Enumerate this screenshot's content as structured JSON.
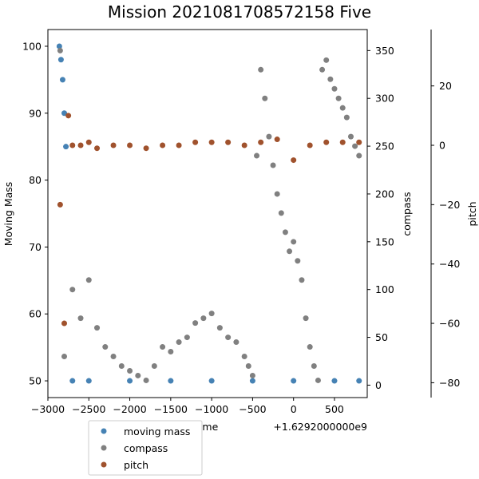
{
  "chart_data": {
    "type": "scatter",
    "title": "Mission 2021081708572158 Five",
    "x_axis": {
      "label": "Time",
      "offset_text": "+1.6292000000e9",
      "ticks": [
        -3000,
        -2500,
        -2000,
        -1500,
        -1000,
        -500,
        0,
        500
      ],
      "tick_labels": [
        "−3000",
        "−2500",
        "−2000",
        "−1500",
        "−1000",
        "−500",
        "0",
        "500"
      ],
      "range": [
        -3000,
        900
      ]
    },
    "y_axes": [
      {
        "name": "left",
        "label": "Moving Mass",
        "range": [
          47.5,
          102.5
        ],
        "ticks": [
          50,
          60,
          70,
          80,
          90,
          100
        ],
        "tick_labels": [
          "50",
          "60",
          "70",
          "80",
          "90",
          "100"
        ]
      },
      {
        "name": "compass",
        "label": "compass",
        "range": [
          -13,
          372
        ],
        "ticks": [
          0,
          50,
          100,
          150,
          200,
          250,
          300,
          350
        ],
        "tick_labels": [
          "0",
          "50",
          "100",
          "150",
          "200",
          "250",
          "300",
          "350"
        ]
      },
      {
        "name": "pitch",
        "label": "pitch",
        "range": [
          -85,
          39
        ],
        "ticks": [
          -80,
          -60,
          -40,
          -20,
          0,
          20
        ],
        "tick_labels": [
          "−80",
          "−60",
          "−40",
          "−20",
          "0",
          "20"
        ]
      }
    ],
    "series": [
      {
        "name": "moving mass",
        "color": "#4682b4",
        "axis": "left",
        "x": [
          -2860,
          -2840,
          -2820,
          -2800,
          -2780,
          -2700,
          -2500,
          -2000,
          -1500,
          -1000,
          -500,
          0,
          500,
          800
        ],
        "y": [
          100,
          98,
          95,
          90,
          85,
          50,
          50,
          50,
          50,
          50,
          50,
          50,
          50,
          50
        ]
      },
      {
        "name": "compass",
        "color": "#808080",
        "axis": "compass",
        "x": [
          -2850,
          -2800,
          -2700,
          -2600,
          -2500,
          -2400,
          -2300,
          -2200,
          -2100,
          -2000,
          -1900,
          -1800,
          -1700,
          -1600,
          -1500,
          -1400,
          -1300,
          -1200,
          -1100,
          -1000,
          -900,
          -800,
          -700,
          -600,
          -550,
          -500,
          -450,
          -400,
          -350,
          -300,
          -250,
          -200,
          -150,
          -100,
          -50,
          0,
          50,
          100,
          150,
          200,
          250,
          300,
          350,
          400,
          450,
          500,
          550,
          600,
          650,
          700,
          750,
          800
        ],
        "y": [
          350,
          30,
          100,
          70,
          110,
          60,
          40,
          30,
          20,
          15,
          10,
          5,
          20,
          40,
          35,
          45,
          50,
          65,
          70,
          75,
          60,
          50,
          45,
          30,
          20,
          10,
          240,
          330,
          300,
          260,
          230,
          200,
          180,
          160,
          140,
          150,
          130,
          110,
          70,
          40,
          20,
          5,
          330,
          340,
          320,
          310,
          300,
          290,
          280,
          260,
          250,
          240
        ]
      },
      {
        "name": "pitch",
        "color": "#a0522d",
        "axis": "pitch",
        "x": [
          -2850,
          -2800,
          -2750,
          -2700,
          -2600,
          -2500,
          -2400,
          -2200,
          -2000,
          -1800,
          -1600,
          -1400,
          -1200,
          -1000,
          -800,
          -600,
          -400,
          -200,
          0,
          200,
          400,
          600,
          800
        ],
        "y": [
          -20,
          -60,
          10,
          0,
          0,
          1,
          -1,
          0,
          0,
          -1,
          0,
          0,
          1,
          1,
          1,
          0,
          1,
          2,
          -5,
          0,
          1,
          1,
          1
        ]
      }
    ],
    "legend": {
      "placement": "bottom-left",
      "entries": [
        "moving mass",
        "compass",
        "pitch"
      ]
    }
  }
}
